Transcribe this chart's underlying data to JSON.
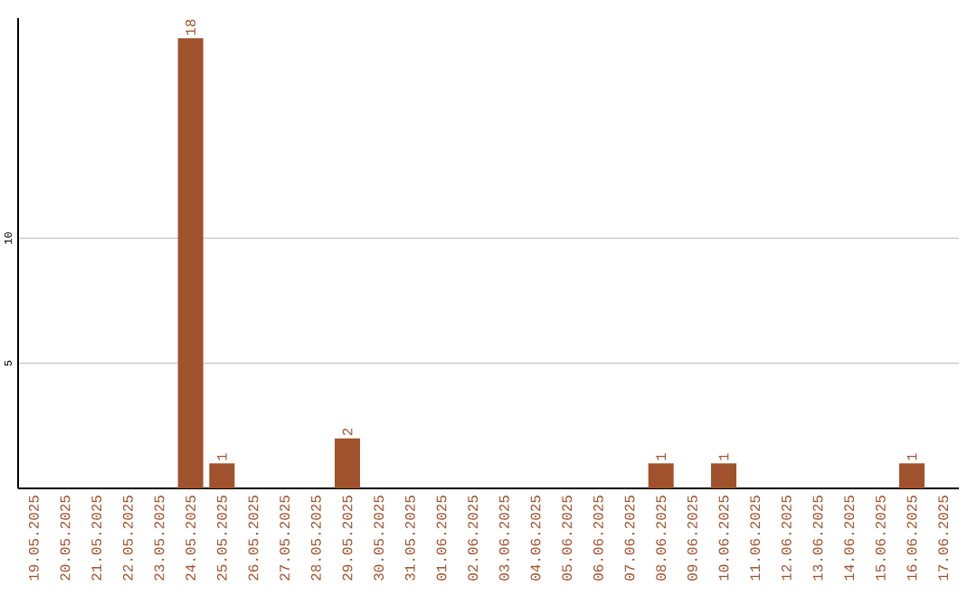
{
  "chart_data": {
    "type": "bar",
    "categories": [
      "19.05.2025",
      "20.05.2025",
      "21.05.2025",
      "22.05.2025",
      "23.05.2025",
      "24.05.2025",
      "25.05.2025",
      "26.05.2025",
      "27.05.2025",
      "28.05.2025",
      "29.05.2025",
      "30.05.2025",
      "31.05.2025",
      "01.06.2025",
      "02.06.2025",
      "03.06.2025",
      "04.06.2025",
      "05.06.2025",
      "06.06.2025",
      "07.06.2025",
      "08.06.2025",
      "09.06.2025",
      "10.06.2025",
      "11.06.2025",
      "12.06.2025",
      "13.06.2025",
      "14.06.2025",
      "15.06.2025",
      "16.06.2025",
      "17.06.2025"
    ],
    "values": [
      0,
      0,
      0,
      0,
      0,
      18,
      1,
      0,
      0,
      0,
      2,
      0,
      0,
      0,
      0,
      0,
      0,
      0,
      0,
      0,
      1,
      0,
      1,
      0,
      0,
      0,
      0,
      0,
      1,
      0
    ],
    "value_labels": [
      null,
      null,
      null,
      null,
      null,
      "18",
      "1",
      null,
      null,
      null,
      "2",
      null,
      null,
      null,
      null,
      null,
      null,
      null,
      null,
      null,
      "1",
      null,
      "1",
      null,
      null,
      null,
      null,
      null,
      "1",
      null
    ],
    "color": "#a0522d",
    "ylim": [
      0,
      18.8
    ],
    "yticks": [
      5,
      10
    ],
    "grid": "y"
  }
}
